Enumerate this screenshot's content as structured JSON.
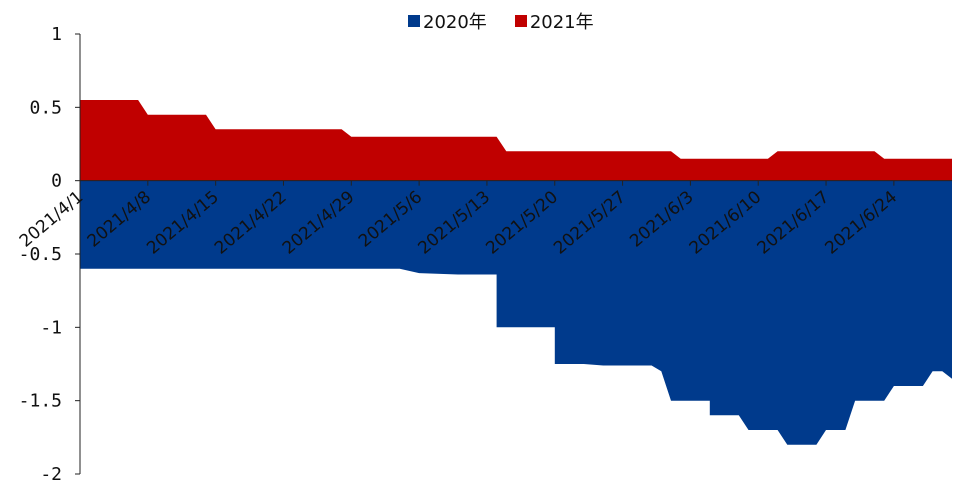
{
  "chart_data": {
    "type": "area",
    "title": "",
    "xlabel": "",
    "ylabel": "",
    "ylim": [
      -2,
      1
    ],
    "yticks": [
      1,
      0.5,
      0,
      -0.5,
      -1,
      -1.5,
      -2
    ],
    "ytick_labels": [
      "1",
      "0.5",
      "0",
      "-0.5",
      "-1",
      "-1.5",
      "-2"
    ],
    "x_start": "2021/4/1",
    "x_end": "2021/6/30",
    "xtick_labels": [
      "2021/4/1",
      "2021/4/8",
      "2021/4/15",
      "2021/4/22",
      "2021/4/29",
      "2021/5/6",
      "2021/5/13",
      "2021/5/20",
      "2021/5/27",
      "2021/6/3",
      "2021/6/10",
      "2021/6/17",
      "2021/6/24"
    ],
    "legend_position": "top-center",
    "grid": false,
    "series": [
      {
        "name": "2020年",
        "color": "#003a8c",
        "points": [
          [
            "2021/4/1",
            -0.6
          ],
          [
            "2021/4/29",
            -0.6
          ],
          [
            "2021/5/4",
            -0.6
          ],
          [
            "2021/5/6",
            -0.63
          ],
          [
            "2021/5/10",
            -0.64
          ],
          [
            "2021/5/14",
            -0.64
          ],
          [
            "2021/5/14",
            -1.0
          ],
          [
            "2021/5/20",
            -1.0
          ],
          [
            "2021/5/20",
            -1.25
          ],
          [
            "2021/5/23",
            -1.25
          ],
          [
            "2021/5/25",
            -1.26
          ],
          [
            "2021/5/30",
            -1.26
          ],
          [
            "2021/5/31",
            -1.3
          ],
          [
            "2021/6/1",
            -1.5
          ],
          [
            "2021/6/5",
            -1.5
          ],
          [
            "2021/6/5",
            -1.6
          ],
          [
            "2021/6/8",
            -1.6
          ],
          [
            "2021/6/9",
            -1.7
          ],
          [
            "2021/6/12",
            -1.7
          ],
          [
            "2021/6/13",
            -1.8
          ],
          [
            "2021/6/16",
            -1.8
          ],
          [
            "2021/6/17",
            -1.7
          ],
          [
            "2021/6/19",
            -1.7
          ],
          [
            "2021/6/20",
            -1.5
          ],
          [
            "2021/6/23",
            -1.5
          ],
          [
            "2021/6/24",
            -1.4
          ],
          [
            "2021/6/27",
            -1.4
          ],
          [
            "2021/6/28",
            -1.3
          ],
          [
            "2021/6/29",
            -1.3
          ],
          [
            "2021/6/30",
            -1.35
          ]
        ]
      },
      {
        "name": "2021年",
        "color": "#c00000",
        "points": [
          [
            "2021/4/1",
            0.55
          ],
          [
            "2021/4/7",
            0.55
          ],
          [
            "2021/4/8",
            0.45
          ],
          [
            "2021/4/14",
            0.45
          ],
          [
            "2021/4/15",
            0.35
          ],
          [
            "2021/4/28",
            0.35
          ],
          [
            "2021/4/29",
            0.3
          ],
          [
            "2021/5/14",
            0.3
          ],
          [
            "2021/5/15",
            0.2
          ],
          [
            "2021/6/1",
            0.2
          ],
          [
            "2021/6/2",
            0.15
          ],
          [
            "2021/6/11",
            0.15
          ],
          [
            "2021/6/12",
            0.2
          ],
          [
            "2021/6/22",
            0.2
          ],
          [
            "2021/6/23",
            0.15
          ],
          [
            "2021/6/30",
            0.15
          ]
        ]
      }
    ]
  }
}
